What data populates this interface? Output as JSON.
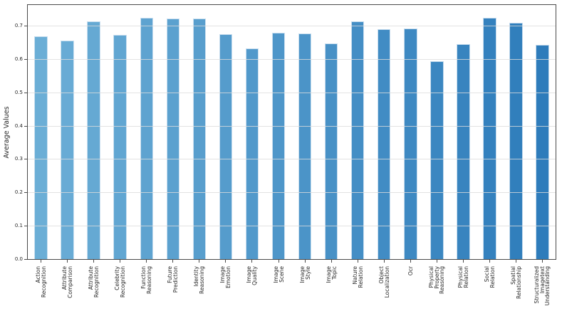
{
  "chart_data": {
    "type": "bar",
    "title": "",
    "xlabel": "",
    "ylabel": "Average Values",
    "ylim": [
      0,
      0.764
    ],
    "yticks": [
      0.0,
      0.1,
      0.2,
      0.3,
      0.4,
      0.5,
      0.6,
      0.7
    ],
    "grid": true,
    "legend": "none",
    "categories": [
      "Action Recognition",
      "Attribute Comparison",
      "Attribute Recognition",
      "Celebrity Recognition",
      "Function Reasoning",
      "Future Prediction",
      "Identity Reasoning",
      "Image Emotion",
      "Image Quality",
      "Image Scene",
      "Image Style",
      "Image Topic",
      "Nature Relation",
      "Object Localization",
      "Ocr",
      "Physical Property Reasoning",
      "Physical Relation",
      "Social Relation",
      "Spatial Relationship",
      "Structuralized Imagetext Understanding"
    ],
    "category_lines": [
      [
        "Action",
        "Recognition"
      ],
      [
        "Attribute",
        "Comparison"
      ],
      [
        "Attribute",
        "Recognition"
      ],
      [
        "Celebrity",
        "Recognition"
      ],
      [
        "Function",
        "Reasoning"
      ],
      [
        "Future",
        "Prediction"
      ],
      [
        "Identity",
        "Reasoning"
      ],
      [
        "Image",
        "Emotion"
      ],
      [
        "Image",
        "Quality"
      ],
      [
        "Image",
        "Scene"
      ],
      [
        "Image",
        "Style"
      ],
      [
        "Image",
        "Topic"
      ],
      [
        "Nature",
        "Relation"
      ],
      [
        "Object",
        "Localization"
      ],
      [
        "Ocr"
      ],
      [
        "Physical",
        "Property",
        "Reasoning"
      ],
      [
        "Physical",
        "Relation"
      ],
      [
        "Social",
        "Relation"
      ],
      [
        "Spatial",
        "Relationship"
      ],
      [
        "Structuralized",
        "Imagetext",
        "Understanding"
      ]
    ],
    "values": [
      0.67,
      0.657,
      0.715,
      0.674,
      0.726,
      0.723,
      0.723,
      0.677,
      0.634,
      0.681,
      0.679,
      0.648,
      0.714,
      0.692,
      0.693,
      0.595,
      0.647,
      0.726,
      0.711,
      0.645
    ],
    "bar_colors": [
      "#6BAED6",
      "#68ABD5",
      "#65A9D3",
      "#61A6D2",
      "#5EA3D0",
      "#5BA1CF",
      "#589ECD",
      "#559CCC",
      "#5199CB",
      "#4E96C9",
      "#4B94C8",
      "#4891C6",
      "#448EC5",
      "#418CC4",
      "#3E89C2",
      "#3B87C1",
      "#3884BF",
      "#3481BE",
      "#317FBC",
      "#2E7CBB"
    ],
    "colors": {
      "background": "#ffffff",
      "spine": "#4a4a4a",
      "grid": "#dcdcdc",
      "tick_text": "#262626",
      "bar_edge": "#d6e6f3"
    }
  }
}
